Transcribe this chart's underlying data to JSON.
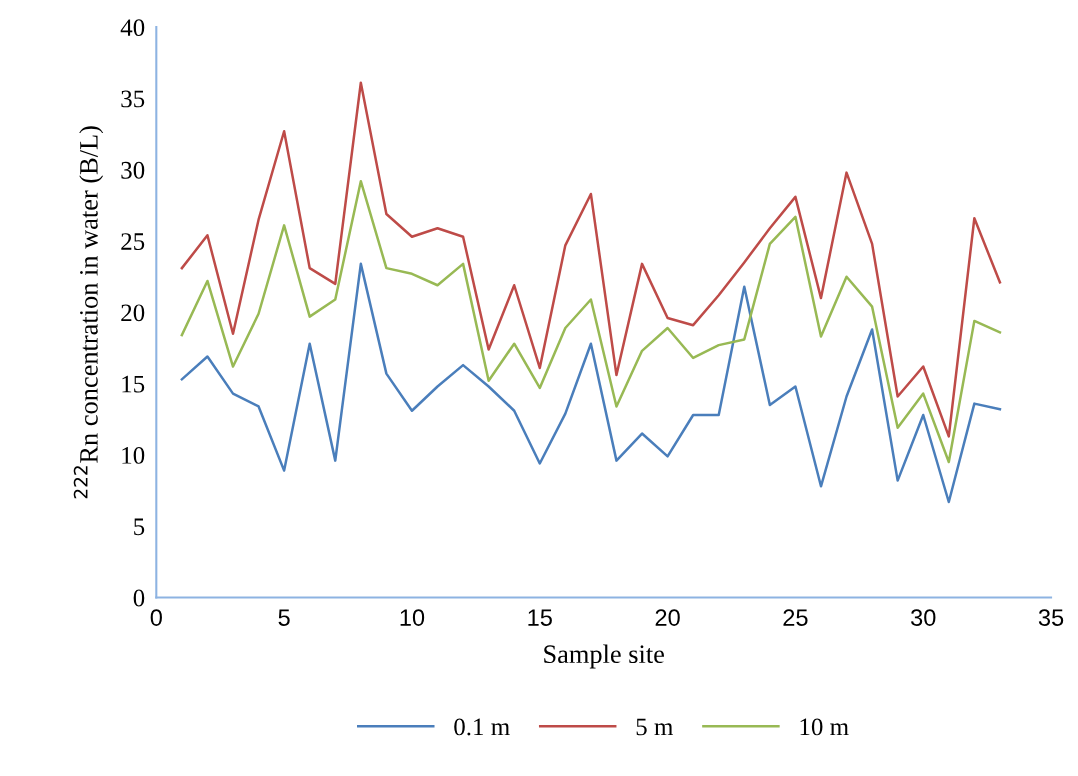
{
  "chart_data": {
    "type": "line",
    "xlabel": "Sample site",
    "ylabel": "$^{222}$Rn concentration in water (B/L)",
    "x": [
      1,
      2,
      3,
      4,
      5,
      6,
      7,
      8,
      9,
      10,
      11,
      12,
      13,
      14,
      15,
      16,
      17,
      18,
      19,
      20,
      21,
      22,
      23,
      24,
      25,
      26,
      27,
      28,
      29,
      30,
      31,
      32,
      33
    ],
    "xlim": [
      0,
      35
    ],
    "xticks": [
      0,
      5,
      10,
      15,
      20,
      25,
      30,
      35
    ],
    "ylim": [
      0,
      40
    ],
    "yticks": [
      0,
      5,
      10,
      15,
      20,
      25,
      30,
      35,
      40
    ],
    "grid": false,
    "legend": "bottom",
    "marker": "none",
    "line_style": "solid",
    "series": [
      {
        "name": "0.1 m",
        "color": "#4a7ebb",
        "values": [
          15.3,
          16.9,
          14.3,
          13.4,
          8.9,
          17.8,
          9.6,
          23.4,
          15.7,
          13.1,
          14.8,
          16.3,
          14.8,
          13.1,
          9.4,
          12.9,
          17.8,
          9.6,
          11.5,
          9.9,
          12.8,
          12.8,
          21.8,
          13.5,
          14.8,
          7.8,
          14.1,
          18.8,
          8.2,
          12.8,
          6.7,
          13.6,
          13.2
        ]
      },
      {
        "name": "5 m",
        "color": "#be4b48",
        "values": [
          23.1,
          25.4,
          18.5,
          26.5,
          32.7,
          23.1,
          22.0,
          36.1,
          26.9,
          25.3,
          25.9,
          25.3,
          17.4,
          21.9,
          16.1,
          24.7,
          28.3,
          15.6,
          23.4,
          19.6,
          19.1,
          21.2,
          23.5,
          25.9,
          28.1,
          21.0,
          29.8,
          24.8,
          14.1,
          16.2,
          11.3,
          26.6,
          22.1
        ]
      },
      {
        "name": "10 m",
        "color": "#98b954",
        "values": [
          18.4,
          22.2,
          16.2,
          19.9,
          26.1,
          19.7,
          20.9,
          29.2,
          23.1,
          22.7,
          21.9,
          23.4,
          15.2,
          17.8,
          14.7,
          18.9,
          20.9,
          13.4,
          17.3,
          18.9,
          16.8,
          17.7,
          18.1,
          24.8,
          26.7,
          18.3,
          22.5,
          20.4,
          11.9,
          14.3,
          9.5,
          19.4,
          18.6
        ]
      }
    ]
  }
}
